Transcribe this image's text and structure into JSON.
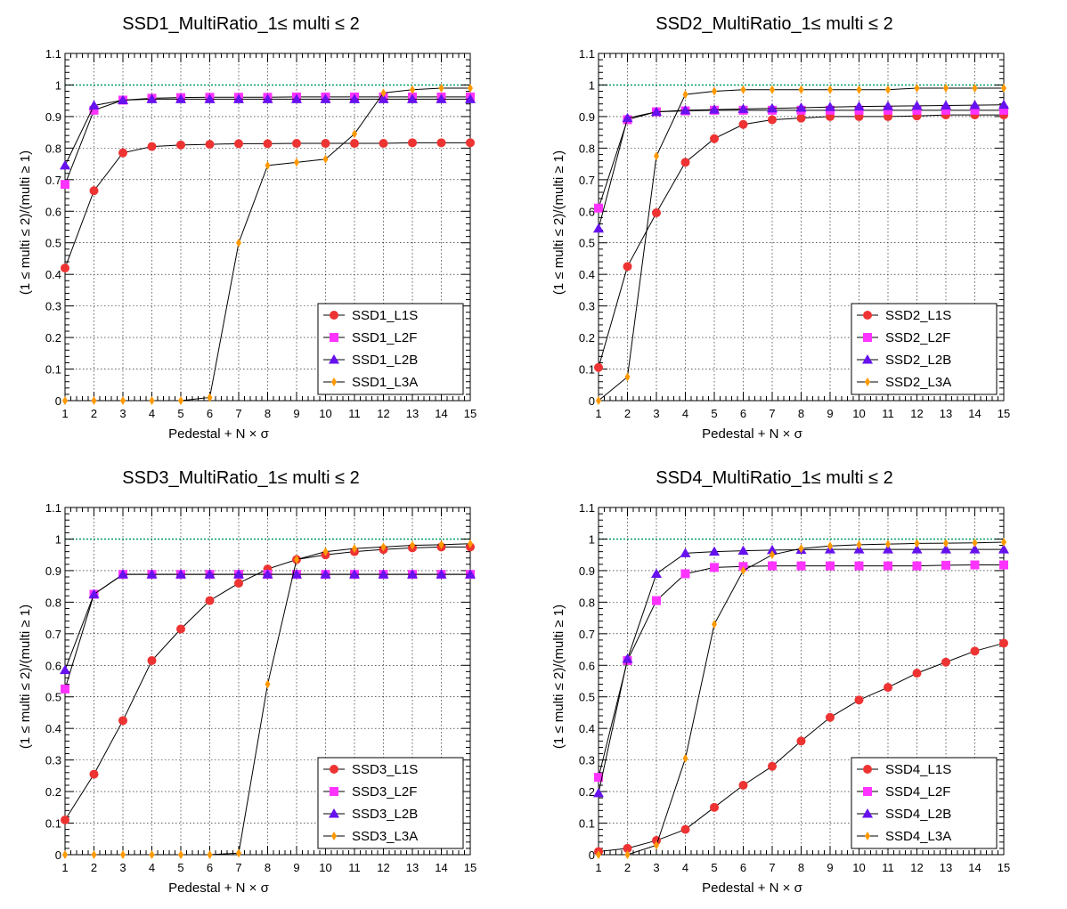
{
  "colors": {
    "L1S": "#ee3333",
    "L2F": "#ff33ff",
    "L2B": "#6611ee",
    "L3A": "#ff9900",
    "reference": "#009966"
  },
  "chart_data": [
    {
      "type": "line",
      "title": "SSD1_MultiRatio_1≤ multi ≤ 2",
      "xlabel": "Pedestal + N × σ",
      "ylabel": "(1 ≤ multi ≤ 2)/(multi ≥ 1)",
      "xlim": [
        1,
        15
      ],
      "ylim": [
        0,
        1.1
      ],
      "x_ticks": [
        "1",
        "2",
        "3",
        "4",
        "5",
        "6",
        "7",
        "8",
        "9",
        "10",
        "11",
        "12",
        "13",
        "14",
        "15"
      ],
      "y_ticks": [
        "0",
        "0.1",
        "0.2",
        "0.3",
        "0.4",
        "0.5",
        "0.6",
        "0.7",
        "0.8",
        "0.9",
        "1",
        "1.1"
      ],
      "grid": true,
      "legend_position": "bottom-right",
      "reference_line": 1.0,
      "x": [
        1,
        2,
        3,
        4,
        5,
        6,
        7,
        8,
        9,
        10,
        11,
        12,
        13,
        14,
        15
      ],
      "series": [
        {
          "name": "SSD1_L1S",
          "key": "L1S",
          "marker": "circle",
          "values": [
            0.42,
            0.665,
            0.785,
            0.805,
            0.81,
            0.812,
            0.814,
            0.814,
            0.815,
            0.815,
            0.815,
            0.815,
            0.817,
            0.817,
            0.817
          ]
        },
        {
          "name": "SSD1_L2F",
          "key": "L2F",
          "marker": "square",
          "values": [
            0.685,
            0.92,
            0.952,
            0.958,
            0.96,
            0.961,
            0.961,
            0.961,
            0.962,
            0.962,
            0.962,
            0.962,
            0.962,
            0.962,
            0.962
          ]
        },
        {
          "name": "SSD1_L2B",
          "key": "L2B",
          "marker": "triangle",
          "values": [
            0.745,
            0.935,
            0.952,
            0.955,
            0.955,
            0.955,
            0.955,
            0.955,
            0.955,
            0.955,
            0.955,
            0.955,
            0.955,
            0.955,
            0.955
          ]
        },
        {
          "name": "SSD1_L3A",
          "key": "L3A",
          "marker": "diamond",
          "values": [
            0,
            0,
            0,
            0,
            0,
            0.01,
            0.5,
            0.745,
            0.755,
            0.765,
            0.845,
            0.975,
            0.985,
            0.99,
            0.99
          ]
        }
      ]
    },
    {
      "type": "line",
      "title": "SSD2_MultiRatio_1≤ multi ≤ 2",
      "xlabel": "Pedestal + N × σ",
      "ylabel": "(1 ≤ multi ≤ 2)/(multi ≥ 1)",
      "xlim": [
        1,
        15
      ],
      "ylim": [
        0,
        1.1
      ],
      "x_ticks": [
        "1",
        "2",
        "3",
        "4",
        "5",
        "6",
        "7",
        "8",
        "9",
        "10",
        "11",
        "12",
        "13",
        "14",
        "15"
      ],
      "y_ticks": [
        "0",
        "0.1",
        "0.2",
        "0.3",
        "0.4",
        "0.5",
        "0.6",
        "0.7",
        "0.8",
        "0.9",
        "1",
        "1.1"
      ],
      "grid": true,
      "legend_position": "bottom-right",
      "reference_line": 1.0,
      "x": [
        1,
        2,
        3,
        4,
        5,
        6,
        7,
        8,
        9,
        10,
        11,
        12,
        13,
        14,
        15
      ],
      "series": [
        {
          "name": "SSD2_L1S",
          "key": "L1S",
          "marker": "circle",
          "values": [
            0.105,
            0.425,
            0.595,
            0.755,
            0.83,
            0.875,
            0.89,
            0.895,
            0.9,
            0.9,
            0.9,
            0.902,
            0.905,
            0.905,
            0.905
          ]
        },
        {
          "name": "SSD2_L2F",
          "key": "L2F",
          "marker": "square",
          "values": [
            0.61,
            0.89,
            0.915,
            0.918,
            0.92,
            0.92,
            0.92,
            0.92,
            0.92,
            0.92,
            0.92,
            0.92,
            0.92,
            0.92,
            0.92
          ]
        },
        {
          "name": "SSD2_L2B",
          "key": "L2B",
          "marker": "triangle",
          "values": [
            0.545,
            0.895,
            0.915,
            0.92,
            0.922,
            0.924,
            0.926,
            0.928,
            0.93,
            0.932,
            0.933,
            0.934,
            0.935,
            0.936,
            0.937
          ]
        },
        {
          "name": "SSD2_L3A",
          "key": "L3A",
          "marker": "diamond",
          "values": [
            0,
            0.075,
            0.775,
            0.97,
            0.98,
            0.985,
            0.985,
            0.985,
            0.985,
            0.985,
            0.985,
            0.99,
            0.99,
            0.99,
            0.99
          ]
        }
      ]
    },
    {
      "type": "line",
      "title": "SSD3_MultiRatio_1≤ multi ≤ 2",
      "xlabel": "Pedestal + N × σ",
      "ylabel": "(1 ≤ multi ≤ 2)/(multi ≥ 1)",
      "xlim": [
        1,
        15
      ],
      "ylim": [
        0,
        1.1
      ],
      "x_ticks": [
        "1",
        "2",
        "3",
        "4",
        "5",
        "6",
        "7",
        "8",
        "9",
        "10",
        "11",
        "12",
        "13",
        "14",
        "15"
      ],
      "y_ticks": [
        "0",
        "0.1",
        "0.2",
        "0.3",
        "0.4",
        "0.5",
        "0.6",
        "0.7",
        "0.8",
        "0.9",
        "1",
        "1.1"
      ],
      "grid": true,
      "legend_position": "bottom-right",
      "reference_line": 1.0,
      "x": [
        1,
        2,
        3,
        4,
        5,
        6,
        7,
        8,
        9,
        10,
        11,
        12,
        13,
        14,
        15
      ],
      "series": [
        {
          "name": "SSD3_L1S",
          "key": "L1S",
          "marker": "circle",
          "values": [
            0.11,
            0.255,
            0.425,
            0.615,
            0.715,
            0.805,
            0.86,
            0.905,
            0.935,
            0.95,
            0.96,
            0.967,
            0.972,
            0.975,
            0.975
          ]
        },
        {
          "name": "SSD3_L2F",
          "key": "L2F",
          "marker": "square",
          "values": [
            0.525,
            0.825,
            0.888,
            0.888,
            0.888,
            0.888,
            0.888,
            0.888,
            0.888,
            0.888,
            0.888,
            0.888,
            0.888,
            0.888,
            0.888
          ]
        },
        {
          "name": "SSD3_L2B",
          "key": "L2B",
          "marker": "triangle",
          "values": [
            0.585,
            0.825,
            0.888,
            0.888,
            0.888,
            0.888,
            0.888,
            0.888,
            0.888,
            0.888,
            0.888,
            0.888,
            0.888,
            0.888,
            0.888
          ]
        },
        {
          "name": "SSD3_L3A",
          "key": "L3A",
          "marker": "diamond",
          "values": [
            0,
            0,
            0,
            0,
            0,
            0,
            0.005,
            0.54,
            0.935,
            0.96,
            0.97,
            0.975,
            0.98,
            0.982,
            0.985
          ]
        }
      ]
    },
    {
      "type": "line",
      "title": "SSD4_MultiRatio_1≤ multi ≤ 2",
      "xlabel": "Pedestal + N × σ",
      "ylabel": "(1 ≤ multi ≤ 2)/(multi ≥ 1)",
      "xlim": [
        1,
        15
      ],
      "ylim": [
        0,
        1.1
      ],
      "x_ticks": [
        "1",
        "2",
        "3",
        "4",
        "5",
        "6",
        "7",
        "8",
        "9",
        "10",
        "11",
        "12",
        "13",
        "14",
        "15"
      ],
      "y_ticks": [
        "0",
        "0.1",
        "0.2",
        "0.3",
        "0.4",
        "0.5",
        "0.6",
        "0.7",
        "0.8",
        "0.9",
        "1",
        "1.1"
      ],
      "grid": true,
      "legend_position": "bottom-right",
      "reference_line": 1.0,
      "x": [
        1,
        2,
        3,
        4,
        5,
        6,
        7,
        8,
        9,
        10,
        11,
        12,
        13,
        14,
        15
      ],
      "series": [
        {
          "name": "SSD4_L1S",
          "key": "L1S",
          "marker": "circle",
          "values": [
            0.01,
            0.02,
            0.045,
            0.08,
            0.15,
            0.22,
            0.28,
            0.36,
            0.435,
            0.49,
            0.53,
            0.575,
            0.61,
            0.645,
            0.67
          ]
        },
        {
          "name": "SSD4_L2F",
          "key": "L2F",
          "marker": "square",
          "values": [
            0.245,
            0.615,
            0.805,
            0.89,
            0.91,
            0.913,
            0.915,
            0.915,
            0.915,
            0.915,
            0.915,
            0.915,
            0.917,
            0.918,
            0.918
          ]
        },
        {
          "name": "SSD4_L2B",
          "key": "L2B",
          "marker": "triangle",
          "values": [
            0.195,
            0.62,
            0.89,
            0.955,
            0.96,
            0.963,
            0.965,
            0.966,
            0.967,
            0.967,
            0.967,
            0.967,
            0.967,
            0.967,
            0.967
          ]
        },
        {
          "name": "SSD4_L3A",
          "key": "L3A",
          "marker": "diamond",
          "values": [
            0,
            0,
            0.03,
            0.305,
            0.73,
            0.9,
            0.95,
            0.97,
            0.978,
            0.982,
            0.984,
            0.986,
            0.987,
            0.988,
            0.99
          ]
        }
      ]
    }
  ]
}
